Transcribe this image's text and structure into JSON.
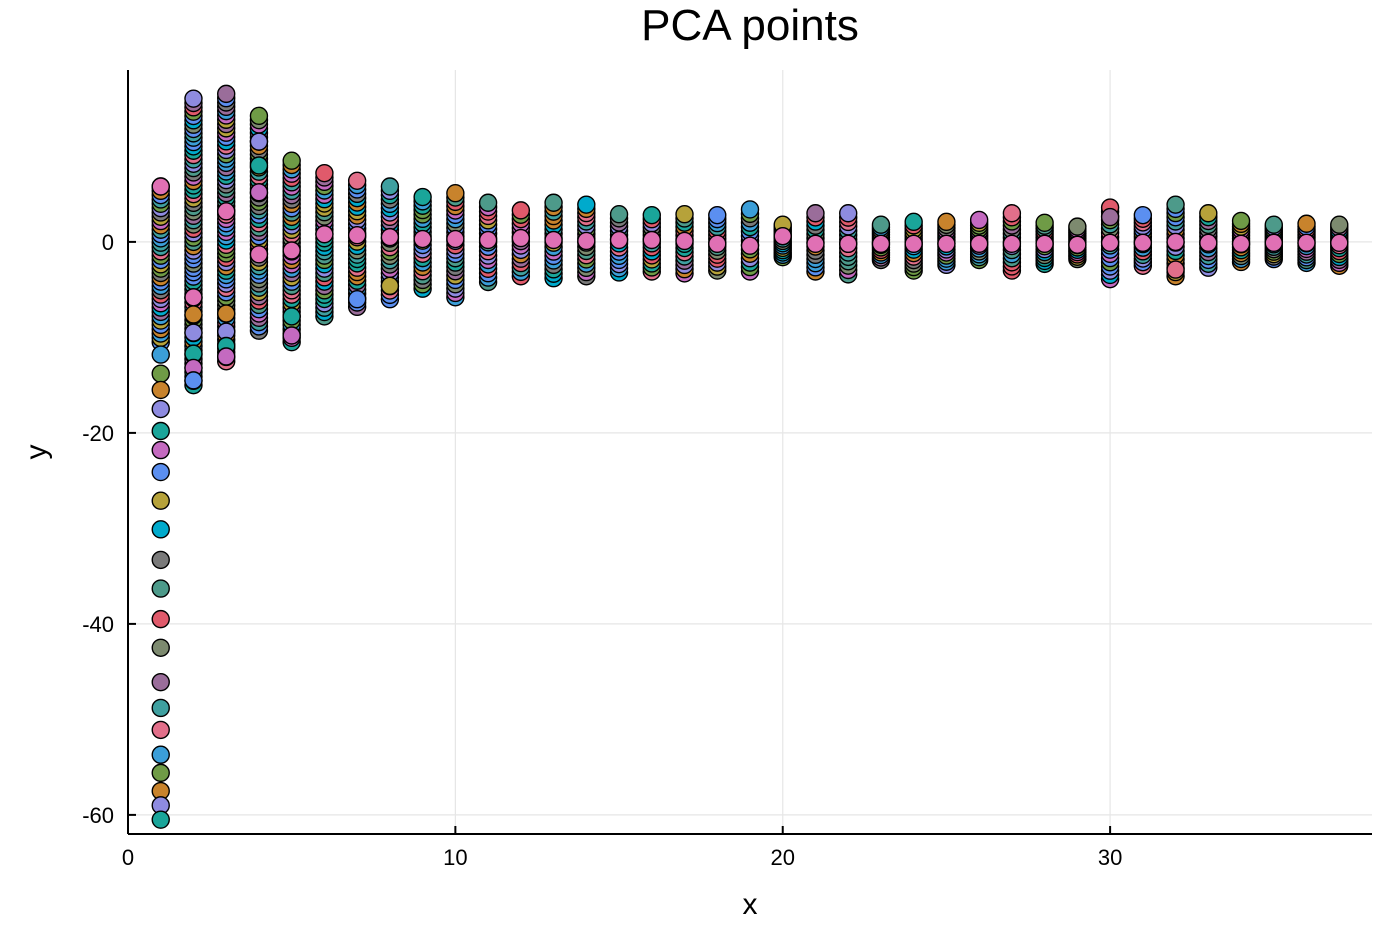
{
  "chart_data": {
    "type": "scatter",
    "title": "PCA points",
    "xlabel": "x",
    "ylabel": "y",
    "xlim": [
      0,
      38
    ],
    "ylim": [
      -62,
      18
    ],
    "xticks": [
      0,
      10,
      20,
      30
    ],
    "yticks": [
      0,
      -20,
      -40,
      -60
    ],
    "grid": true,
    "legend": "none",
    "palette": [
      "#e26f8a",
      "#3b9ed8",
      "#6f9b46",
      "#c8832c",
      "#8e8be0",
      "#1aa59a",
      "#c46ac0",
      "#5b8ff0",
      "#b6a23a",
      "#00aacc",
      "#7a7a7a",
      "#4d9a8a",
      "#e05a6b",
      "#7d8a6f",
      "#9a6d9a",
      "#3fa0a0"
    ],
    "columns": [
      {
        "x": 1,
        "min": -60.5,
        "max": 5.8,
        "outliers": [
          -11.8,
          -13.8,
          -15.5,
          -17.5,
          -19.8,
          -21.8,
          -24.1,
          -27.1,
          -30.1,
          -33.3,
          -36.3,
          -39.5,
          -42.5,
          -46.1,
          -48.8,
          -51.1,
          -53.7,
          -55.6,
          -57.5,
          -59.0,
          -60.5
        ],
        "mean": 5.8
      },
      {
        "x": 2,
        "min": -15.0,
        "max": 15.0,
        "outliers": [
          -5.8,
          -7.6,
          -9.5,
          -11.7,
          -13.2,
          -14.5
        ],
        "mean": -5.8
      },
      {
        "x": 3,
        "min": -12.5,
        "max": 15.5,
        "outliers": [
          -7.5,
          -9.4,
          -10.9,
          -12.0
        ],
        "mean": 3.2
      },
      {
        "x": 4,
        "min": -9.3,
        "max": 13.2,
        "outliers": [
          10.5,
          8.0,
          5.2
        ],
        "mean": -1.3
      },
      {
        "x": 5,
        "min": -10.5,
        "max": 8.5,
        "outliers": [
          -7.8,
          -9.8
        ],
        "mean": -0.9
      },
      {
        "x": 6,
        "min": -7.8,
        "max": 7.2,
        "outliers": [],
        "mean": 0.8
      },
      {
        "x": 7,
        "min": -6.8,
        "max": 6.4,
        "outliers": [
          -6.0
        ],
        "mean": 0.7
      },
      {
        "x": 8,
        "min": -6.0,
        "max": 5.8,
        "outliers": [
          -4.6
        ],
        "mean": 0.5
      },
      {
        "x": 9,
        "min": -4.9,
        "max": 4.7,
        "outliers": [],
        "mean": 0.3
      },
      {
        "x": 10,
        "min": -5.8,
        "max": 5.1,
        "outliers": [],
        "mean": 0.3
      },
      {
        "x": 11,
        "min": -4.2,
        "max": 4.1,
        "outliers": [],
        "mean": 0.2
      },
      {
        "x": 12,
        "min": -3.6,
        "max": 3.3,
        "outliers": [],
        "mean": 0.4
      },
      {
        "x": 13,
        "min": -3.8,
        "max": 4.1,
        "outliers": [],
        "mean": 0.2
      },
      {
        "x": 14,
        "min": -3.6,
        "max": 3.9,
        "outliers": [],
        "mean": 0.1
      },
      {
        "x": 15,
        "min": -3.2,
        "max": 2.9,
        "outliers": [],
        "mean": 0.2
      },
      {
        "x": 16,
        "min": -3.1,
        "max": 2.8,
        "outliers": [],
        "mean": 0.2
      },
      {
        "x": 17,
        "min": -3.3,
        "max": 2.9,
        "outliers": [],
        "mean": 0.1
      },
      {
        "x": 18,
        "min": -3.0,
        "max": 2.8,
        "outliers": [],
        "mean": -0.2
      },
      {
        "x": 19,
        "min": -3.1,
        "max": 3.4,
        "outliers": [],
        "mean": -0.4
      },
      {
        "x": 20,
        "min": -1.6,
        "max": 1.8,
        "outliers": [],
        "mean": 0.6
      },
      {
        "x": 21,
        "min": -3.1,
        "max": 3.0,
        "outliers": [],
        "mean": -0.2
      },
      {
        "x": 22,
        "min": -3.4,
        "max": 3.0,
        "outliers": [],
        "mean": -0.2
      },
      {
        "x": 23,
        "min": -1.9,
        "max": 1.8,
        "outliers": [],
        "mean": -0.2
      },
      {
        "x": 24,
        "min": -3.0,
        "max": 2.1,
        "outliers": [],
        "mean": -0.2
      },
      {
        "x": 25,
        "min": -2.4,
        "max": 2.1,
        "outliers": [],
        "mean": -0.2
      },
      {
        "x": 26,
        "min": -1.9,
        "max": 2.3,
        "outliers": [],
        "mean": -0.2
      },
      {
        "x": 27,
        "min": -3.0,
        "max": 3.0,
        "outliers": [],
        "mean": -0.2
      },
      {
        "x": 28,
        "min": -2.3,
        "max": 2.0,
        "outliers": [],
        "mean": -0.2
      },
      {
        "x": 29,
        "min": -1.8,
        "max": 1.6,
        "outliers": [],
        "mean": -0.3
      },
      {
        "x": 30,
        "min": -3.9,
        "max": 3.6,
        "outliers": [
          2.6
        ],
        "mean": -0.1
      },
      {
        "x": 31,
        "min": -2.5,
        "max": 2.8,
        "outliers": [],
        "mean": -0.1
      },
      {
        "x": 32,
        "min": -3.6,
        "max": 3.9,
        "outliers": [
          -2.9
        ],
        "mean": 0.0
      },
      {
        "x": 33,
        "min": -2.7,
        "max": 3.0,
        "outliers": [],
        "mean": -0.1
      },
      {
        "x": 34,
        "min": -2.1,
        "max": 2.2,
        "outliers": [],
        "mean": -0.2
      },
      {
        "x": 35,
        "min": -1.8,
        "max": 1.8,
        "outliers": [],
        "mean": -0.1
      },
      {
        "x": 36,
        "min": -2.2,
        "max": 1.9,
        "outliers": [],
        "mean": -0.1
      },
      {
        "x": 37,
        "min": -2.5,
        "max": 1.8,
        "outliers": [],
        "mean": -0.1
      }
    ],
    "mean_color": "#e070b4"
  }
}
